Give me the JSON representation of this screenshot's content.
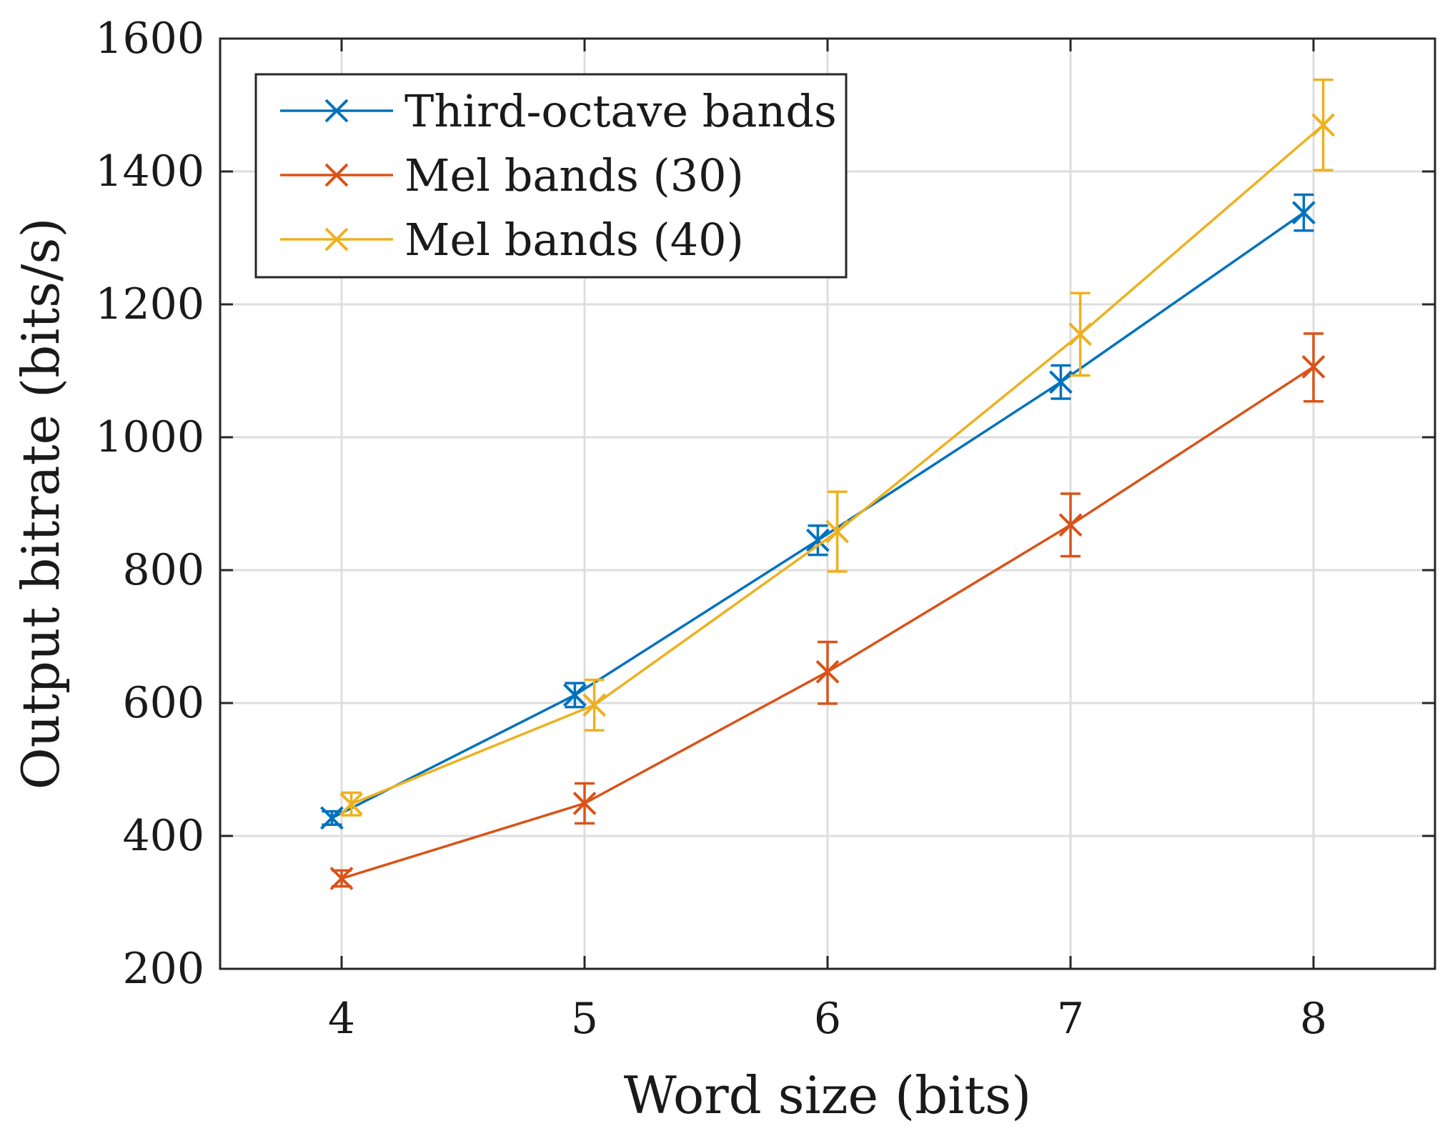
{
  "chart_data": {
    "type": "line",
    "title": "",
    "xlabel": "Word size (bits)",
    "ylabel": "Output bitrate (bits/s)",
    "xlim": [
      3.5,
      8.5
    ],
    "ylim": [
      200,
      1600
    ],
    "xticks": [
      4,
      5,
      6,
      7,
      8
    ],
    "yticks": [
      200,
      400,
      600,
      800,
      1000,
      1200,
      1400,
      1600
    ],
    "grid": true,
    "legend_position": "top-left",
    "x": [
      4,
      5,
      6,
      7,
      8
    ],
    "series": [
      {
        "name": "Third-octave bands",
        "color": "#0072BD",
        "marker": "x",
        "x": [
          3.96,
          4.96,
          5.96,
          6.96,
          7.96
        ],
        "values": [
          427,
          612,
          845,
          1083,
          1338
        ],
        "err_low": [
          10,
          18,
          22,
          25,
          27
        ],
        "err_high": [
          10,
          18,
          22,
          25,
          27
        ]
      },
      {
        "name": "Mel bands (30)",
        "color": "#D95319",
        "marker": "x",
        "x": [
          4.0,
          5.0,
          6.0,
          7.0,
          8.0
        ],
        "values": [
          336,
          449,
          647,
          868,
          1106
        ],
        "err_low": [
          12,
          30,
          48,
          47,
          52
        ],
        "err_high": [
          12,
          30,
          45,
          47,
          50
        ]
      },
      {
        "name": "Mel bands (40)",
        "color": "#EDB120",
        "marker": "x",
        "x": [
          4.04,
          5.04,
          6.04,
          7.04,
          8.04
        ],
        "values": [
          448,
          597,
          858,
          1155,
          1470
        ],
        "err_low": [
          17,
          38,
          60,
          62,
          68
        ],
        "err_high": [
          17,
          38,
          60,
          62,
          68
        ]
      }
    ]
  }
}
